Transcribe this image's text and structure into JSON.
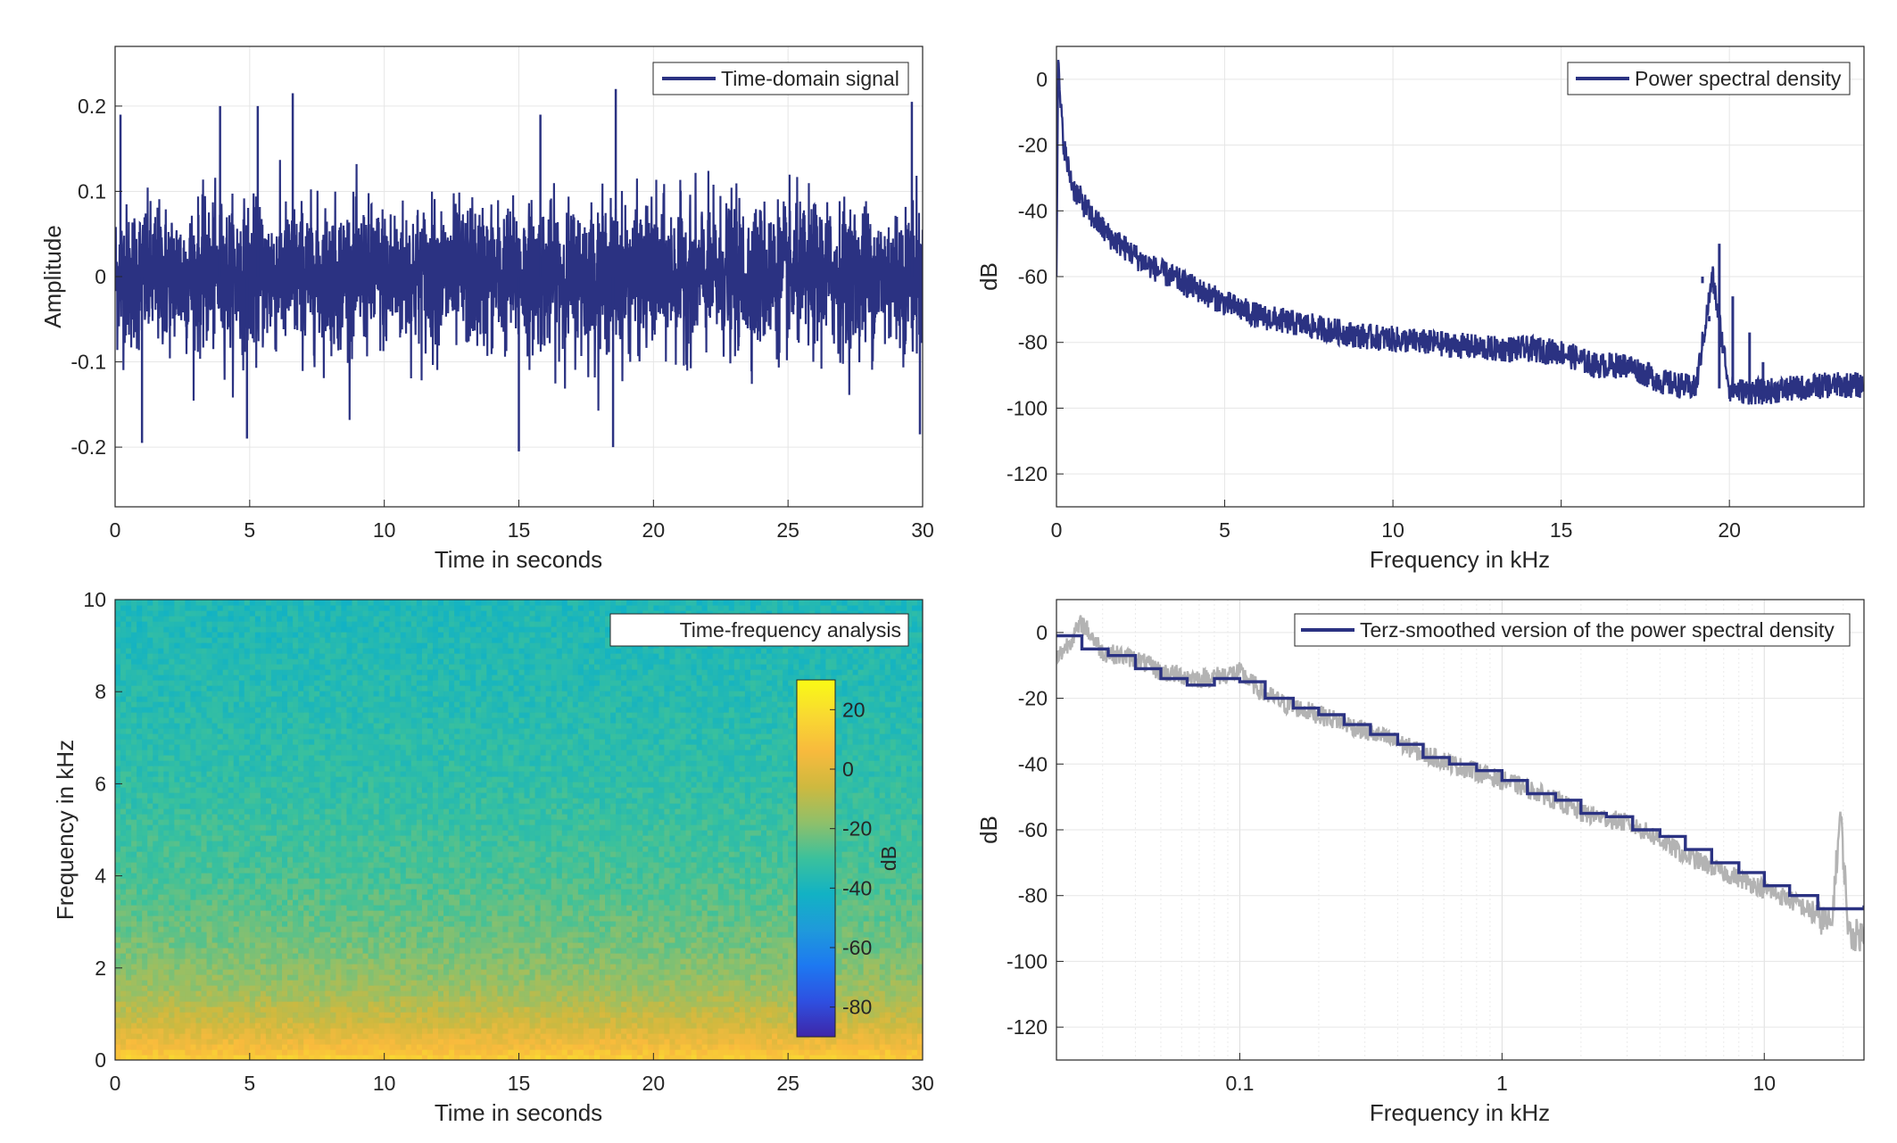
{
  "colors": {
    "series": "#2B3282",
    "raw_psd": "#B3B3B3",
    "grid": "#E6E6E6",
    "axis": "#262626"
  },
  "chart_data": [
    {
      "id": "time-domain",
      "type": "line",
      "title": "",
      "xlabel": "Time in seconds",
      "ylabel": "Amplitude",
      "xlim": [
        0,
        30
      ],
      "ylim": [
        -0.27,
        0.27
      ],
      "xticks": [
        0,
        5,
        10,
        15,
        20,
        25,
        30
      ],
      "xtick_labels": [
        "0",
        "5",
        "10",
        "15",
        "20",
        "25",
        "30"
      ],
      "yticks": [
        -0.2,
        -0.1,
        0,
        0.1,
        0.2
      ],
      "ytick_labels": [
        "-0.2",
        "-0.1",
        "0",
        "0.1",
        "0.2"
      ],
      "grid": true,
      "legend": {
        "entries": [
          "Time-domain signal"
        ],
        "location": "top-right"
      },
      "series": [
        {
          "name": "Time-domain signal",
          "description_free": true,
          "envelope": {
            "typical_abs": 0.11,
            "peak_max": 0.225,
            "peak_min": -0.205
          },
          "notable_peaks": [
            [
              0.2,
              0.19
            ],
            [
              3.9,
              0.2
            ],
            [
              5.3,
              0.2
            ],
            [
              6.6,
              0.215
            ],
            [
              15.8,
              0.19
            ],
            [
              18.6,
              0.22
            ],
            [
              29.6,
              0.205
            ],
            [
              1.0,
              -0.195
            ],
            [
              4.9,
              -0.19
            ],
            [
              15.0,
              -0.205
            ],
            [
              18.5,
              -0.2
            ],
            [
              29.9,
              -0.185
            ]
          ]
        }
      ]
    },
    {
      "id": "psd-linear",
      "type": "line",
      "title": "",
      "xlabel": "Frequency in kHz",
      "ylabel": "dB",
      "xlim": [
        0,
        24
      ],
      "ylim": [
        -130,
        10
      ],
      "xticks": [
        0,
        5,
        10,
        15,
        20
      ],
      "xtick_labels": [
        "0",
        "5",
        "10",
        "15",
        "20"
      ],
      "yticks": [
        -120,
        -100,
        -80,
        -60,
        -40,
        -20,
        0
      ],
      "ytick_labels": [
        "-120",
        "-100",
        "-80",
        "-60",
        "-40",
        "-20",
        "0"
      ],
      "grid": true,
      "legend": {
        "entries": [
          "Power spectral density"
        ],
        "location": "top-right"
      },
      "series": [
        {
          "name": "Power spectral density",
          "x": [
            0,
            0.05,
            0.1,
            0.2,
            0.3,
            0.5,
            1,
            1.5,
            2,
            2.5,
            3,
            4,
            5,
            6,
            7,
            8,
            9,
            10,
            11,
            12,
            13,
            14,
            15,
            15.5,
            16,
            17,
            18,
            19,
            19.5,
            20,
            20.5,
            21,
            22,
            23,
            24
          ],
          "y": [
            -57,
            5,
            -5,
            -18,
            -25,
            -33,
            -41,
            -47,
            -51,
            -55,
            -58,
            -63,
            -68,
            -72,
            -74,
            -76,
            -78,
            -79,
            -80,
            -81,
            -82,
            -82,
            -83,
            -85,
            -87,
            -87,
            -92,
            -94,
            -60,
            -94,
            -95,
            -95,
            -94,
            -93,
            -93
          ],
          "noise_width_db": 8,
          "spikes": [
            [
              19.2,
              -62
            ],
            [
              19.4,
              -72
            ],
            [
              19.7,
              -50
            ],
            [
              20.1,
              -66
            ],
            [
              20.6,
              -77
            ],
            [
              21.0,
              -86
            ]
          ]
        }
      ]
    },
    {
      "id": "spectrogram",
      "type": "heatmap",
      "title": "",
      "xlabel": "Time in seconds",
      "ylabel": "Frequency in kHz",
      "xlim": [
        0,
        30
      ],
      "ylim": [
        0,
        10
      ],
      "xticks": [
        0,
        5,
        10,
        15,
        20,
        25,
        30
      ],
      "xtick_labels": [
        "0",
        "5",
        "10",
        "15",
        "20",
        "25",
        "30"
      ],
      "yticks": [
        0,
        2,
        4,
        6,
        8,
        10
      ],
      "ytick_labels": [
        "0",
        "2",
        "4",
        "6",
        "8",
        "10"
      ],
      "legend": {
        "entries": [
          "Time-frequency analysis"
        ],
        "location": "top-right"
      },
      "colorbar": {
        "label": "dB",
        "limits": [
          -90,
          30
        ],
        "ticks": [
          -80,
          -60,
          -40,
          -20,
          0,
          20
        ],
        "tick_labels": [
          "-80",
          "-60",
          "-40",
          "-20",
          "0",
          "20"
        ],
        "colormap": [
          "#3E26A8",
          "#2E50E1",
          "#1D79F1",
          "#1F9ADA",
          "#12B2C4",
          "#3BC19C",
          "#8FC06A",
          "#CEB93F",
          "#F8BA3D",
          "#F9D931",
          "#F9FB15"
        ]
      },
      "level_by_frequency_khz": [
        [
          0,
          15
        ],
        [
          0.3,
          5
        ],
        [
          0.8,
          -5
        ],
        [
          1.5,
          -15
        ],
        [
          2.5,
          -22
        ],
        [
          4,
          -28
        ],
        [
          6,
          -33
        ],
        [
          8,
          -36
        ],
        [
          10,
          -38
        ]
      ]
    },
    {
      "id": "psd-terz",
      "type": "line",
      "title": "",
      "xlabel": "Frequency in kHz",
      "ylabel": "dB",
      "xscale": "log",
      "xlim": [
        0.02,
        24
      ],
      "ylim": [
        -130,
        10
      ],
      "xticks": [
        0.1,
        1,
        10
      ],
      "xtick_labels": [
        "0.1",
        "1",
        "10"
      ],
      "yticks": [
        -120,
        -100,
        -80,
        -60,
        -40,
        -20,
        0
      ],
      "ytick_labels": [
        "-120",
        "-100",
        "-80",
        "-60",
        "-40",
        "-20",
        "0"
      ],
      "grid": true,
      "legend": {
        "entries": [
          "Terz-smoothed version of the power spectral density"
        ],
        "location": "top-right"
      },
      "series": [
        {
          "role": "raw",
          "x": [
            0.02,
            0.025,
            0.03,
            0.04,
            0.05,
            0.07,
            0.1,
            0.12,
            0.15,
            0.2,
            0.3,
            0.5,
            0.7,
            1,
            1.5,
            2,
            3,
            4,
            5,
            7,
            10,
            13,
            16,
            18,
            19.5,
            21,
            24
          ],
          "y": [
            -8,
            3,
            -6,
            -8,
            -12,
            -14,
            -12,
            -18,
            -22,
            -25,
            -30,
            -37,
            -41,
            -45,
            -50,
            -55,
            -58,
            -63,
            -68,
            -73,
            -78,
            -82,
            -86,
            -90,
            -55,
            -92,
            -92
          ]
        },
        {
          "name": "Terz-smoothed version of the power spectral density",
          "bands_khz": [
            0.02,
            0.025,
            0.0315,
            0.04,
            0.05,
            0.063,
            0.08,
            0.1,
            0.125,
            0.16,
            0.2,
            0.25,
            0.315,
            0.4,
            0.5,
            0.63,
            0.8,
            1,
            1.25,
            1.6,
            2,
            2.5,
            3.15,
            4,
            5,
            6.3,
            8,
            10,
            12.5,
            16,
            20,
            24
          ],
          "levels_db": [
            -1,
            -5,
            -7,
            -11,
            -14,
            -16,
            -14,
            -15,
            -20,
            -23,
            -25,
            -28,
            -31,
            -34,
            -38,
            -40,
            -42,
            -45,
            -49,
            -51,
            -55,
            -56,
            -60,
            -62,
            -66,
            -70,
            -73,
            -77,
            -80,
            -84,
            -84,
            -83
          ]
        }
      ]
    }
  ]
}
